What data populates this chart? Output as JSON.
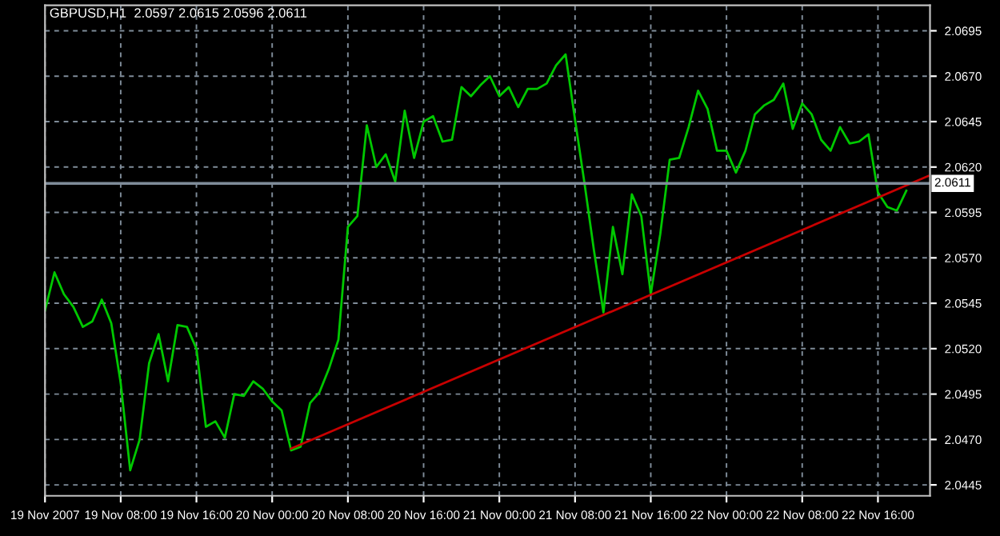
{
  "chart_data": {
    "type": "line",
    "title": "GBPUSD,H1  2.0597 2.0615 2.0596 2.0611",
    "x": [
      "2007-11-19T00:00",
      "2007-11-19T01:00",
      "2007-11-19T02:00",
      "2007-11-19T03:00",
      "2007-11-19T04:00",
      "2007-11-19T05:00",
      "2007-11-19T06:00",
      "2007-11-19T07:00",
      "2007-11-19T08:00",
      "2007-11-19T09:00",
      "2007-11-19T10:00",
      "2007-11-19T11:00",
      "2007-11-19T12:00",
      "2007-11-19T13:00",
      "2007-11-19T14:00",
      "2007-11-19T15:00",
      "2007-11-19T16:00",
      "2007-11-19T17:00",
      "2007-11-19T18:00",
      "2007-11-19T19:00",
      "2007-11-19T20:00",
      "2007-11-19T21:00",
      "2007-11-19T22:00",
      "2007-11-19T23:00",
      "2007-11-20T00:00",
      "2007-11-20T01:00",
      "2007-11-20T02:00",
      "2007-11-20T03:00",
      "2007-11-20T04:00",
      "2007-11-20T05:00",
      "2007-11-20T06:00",
      "2007-11-20T07:00",
      "2007-11-20T08:00",
      "2007-11-20T09:00",
      "2007-11-20T10:00",
      "2007-11-20T11:00",
      "2007-11-20T12:00",
      "2007-11-20T13:00",
      "2007-11-20T14:00",
      "2007-11-20T15:00",
      "2007-11-20T16:00",
      "2007-11-20T17:00",
      "2007-11-20T18:00",
      "2007-11-20T19:00",
      "2007-11-20T20:00",
      "2007-11-20T21:00",
      "2007-11-20T22:00",
      "2007-11-20T23:00",
      "2007-11-21T00:00",
      "2007-11-21T01:00",
      "2007-11-21T02:00",
      "2007-11-21T03:00",
      "2007-11-21T04:00",
      "2007-11-21T05:00",
      "2007-11-21T06:00",
      "2007-11-21T07:00",
      "2007-11-21T08:00",
      "2007-11-21T09:00",
      "2007-11-21T10:00",
      "2007-11-21T11:00",
      "2007-11-21T12:00",
      "2007-11-21T13:00",
      "2007-11-21T14:00",
      "2007-11-21T15:00",
      "2007-11-21T16:00",
      "2007-11-21T17:00",
      "2007-11-21T18:00",
      "2007-11-21T19:00",
      "2007-11-21T20:00",
      "2007-11-21T21:00",
      "2007-11-21T22:00",
      "2007-11-21T23:00",
      "2007-11-22T00:00",
      "2007-11-22T01:00",
      "2007-11-22T02:00",
      "2007-11-22T03:00",
      "2007-11-22T04:00",
      "2007-11-22T05:00",
      "2007-11-22T06:00",
      "2007-11-22T07:00",
      "2007-11-22T08:00",
      "2007-11-22T09:00",
      "2007-11-22T10:00",
      "2007-11-22T11:00",
      "2007-11-22T12:00",
      "2007-11-22T13:00",
      "2007-11-22T14:00",
      "2007-11-22T15:00",
      "2007-11-22T16:00",
      "2007-11-22T17:00",
      "2007-11-22T18:00",
      "2007-11-22T19:00"
    ],
    "series": [
      {
        "color": "#00c800",
        "values": [
          2.0541,
          2.0562,
          2.055,
          2.0543,
          2.0532,
          2.0535,
          2.0547,
          2.0534,
          2.0501,
          2.0453,
          2.047,
          2.0512,
          2.0528,
          2.0502,
          2.0533,
          2.0532,
          2.052,
          2.0477,
          2.048,
          2.0471,
          2.0495,
          2.0494,
          2.0502,
          2.0498,
          2.0491,
          2.0486,
          2.0464,
          2.0466,
          2.049,
          2.0496,
          2.0509,
          2.0525,
          2.0587,
          2.0593,
          2.0643,
          2.062,
          2.0627,
          2.0612,
          2.0651,
          2.0625,
          2.0645,
          2.0648,
          2.0634,
          2.0635,
          2.0664,
          2.0659,
          2.0665,
          2.067,
          2.0659,
          2.0664,
          2.0653,
          2.0663,
          2.0663,
          2.0666,
          2.0676,
          2.0682,
          2.0646,
          2.0611,
          2.0574,
          2.054,
          2.0587,
          2.0561,
          2.0605,
          2.0593,
          2.055,
          2.0583,
          2.0624,
          2.0625,
          2.0642,
          2.0662,
          2.0652,
          2.0629,
          2.0629,
          2.0617,
          2.0629,
          2.0649,
          2.0654,
          2.0657,
          2.0666,
          2.0641,
          2.0655,
          2.0649,
          2.0635,
          2.0629,
          2.0642,
          2.0633,
          2.0634,
          2.0638,
          2.0606,
          2.0598,
          2.0596,
          2.0607
        ]
      },
      {
        "type": "line",
        "color": "#c80000",
        "x": [
          "2007-11-20T02:00",
          "2007-11-22T21:18"
        ],
        "values": [
          2.0465,
          2.0615
        ]
      }
    ],
    "xlim": [
      "2007-11-19T00:00",
      "2007-11-22T21:30"
    ],
    "xticks": [
      {
        "value": "2007-11-19T00:00",
        "label": "19 Nov 2007"
      },
      {
        "value": "2007-11-19T08:00",
        "label": "19 Nov 08:00"
      },
      {
        "value": "2007-11-19T16:00",
        "label": "19 Nov 16:00"
      },
      {
        "value": "2007-11-20T00:00",
        "label": "20 Nov 00:00"
      },
      {
        "value": "2007-11-20T08:00",
        "label": "20 Nov 08:00"
      },
      {
        "value": "2007-11-20T16:00",
        "label": "20 Nov 16:00"
      },
      {
        "value": "2007-11-21T00:00",
        "label": "21 Nov 00:00"
      },
      {
        "value": "2007-11-21T08:00",
        "label": "21 Nov 08:00"
      },
      {
        "value": "2007-11-21T16:00",
        "label": "21 Nov 16:00"
      },
      {
        "value": "2007-11-22T00:00",
        "label": "22 Nov 00:00"
      },
      {
        "value": "2007-11-22T08:00",
        "label": "22 Nov 08:00"
      },
      {
        "value": "2007-11-22T16:00",
        "label": "22 Nov 16:00"
      }
    ],
    "ylim": [
      2.0439,
      2.0709
    ],
    "yticks": [
      {
        "value": 2.0445,
        "label": "2.0445"
      },
      {
        "value": 2.047,
        "label": "2.0470"
      },
      {
        "value": 2.0495,
        "label": "2.0495"
      },
      {
        "value": 2.052,
        "label": "2.0520"
      },
      {
        "value": 2.0545,
        "label": "2.0545"
      },
      {
        "value": 2.057,
        "label": "2.0570"
      },
      {
        "value": 2.0595,
        "label": "2.0595"
      },
      {
        "value": 2.062,
        "label": "2.0620"
      },
      {
        "value": 2.0645,
        "label": "2.0645"
      },
      {
        "value": 2.067,
        "label": "2.0670"
      },
      {
        "value": 2.0695,
        "label": "2.0695"
      }
    ],
    "ref_lines": [
      {
        "axis": "y",
        "value": 2.0611,
        "label": "2.0611",
        "color": "#7f8c99"
      }
    ],
    "grid": true,
    "line_style": "solid",
    "marker": "none"
  }
}
